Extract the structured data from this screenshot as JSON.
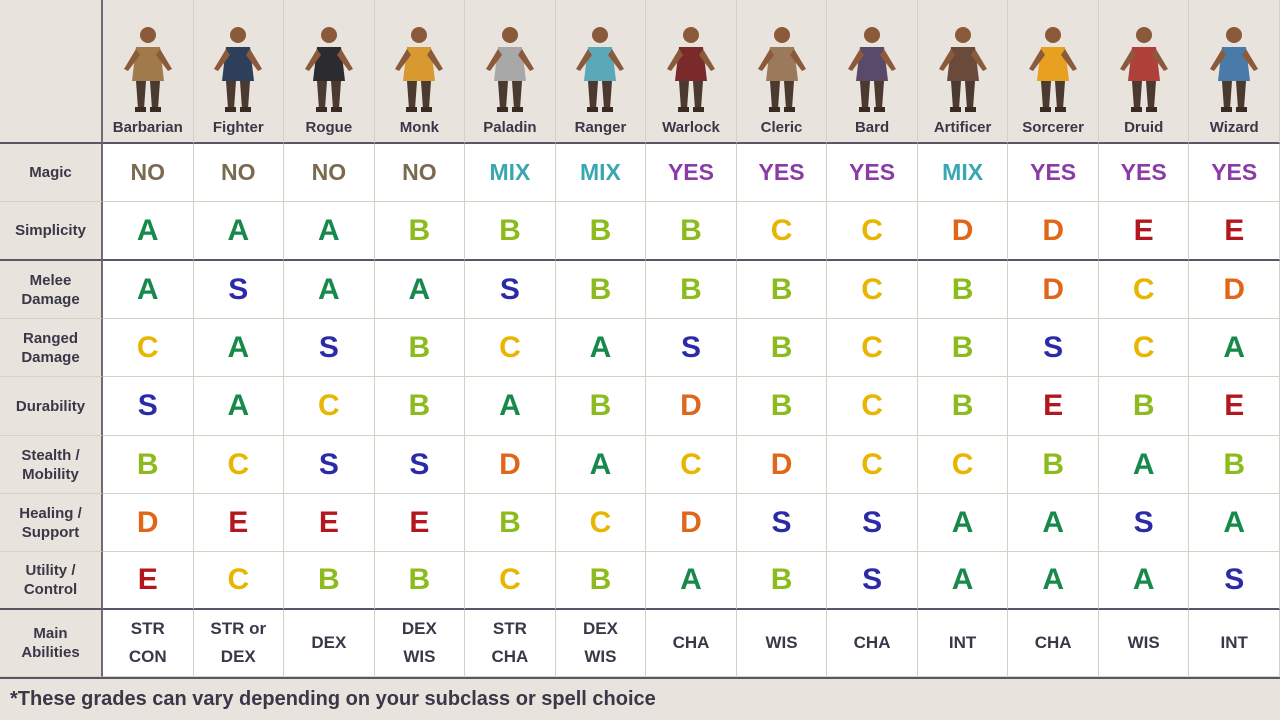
{
  "classes": [
    "Barbarian",
    "Fighter",
    "Rogue",
    "Monk",
    "Paladin",
    "Ranger",
    "Warlock",
    "Cleric",
    "Bard",
    "Artificer",
    "Sorcerer",
    "Druid",
    "Wizard"
  ],
  "rows": [
    {
      "label": "Magic",
      "type": "magic",
      "values": [
        "NO",
        "NO",
        "NO",
        "NO",
        "MIX",
        "MIX",
        "YES",
        "YES",
        "YES",
        "MIX",
        "YES",
        "YES",
        "YES"
      ]
    },
    {
      "label": "Simplicity",
      "type": "grade",
      "values": [
        "A",
        "A",
        "A",
        "B",
        "B",
        "B",
        "B",
        "C",
        "C",
        "D",
        "D",
        "E",
        "E"
      ]
    },
    {
      "label": "Melee\nDamage",
      "type": "grade",
      "values": [
        "A",
        "S",
        "A",
        "A",
        "S",
        "B",
        "B",
        "B",
        "C",
        "B",
        "D",
        "C",
        "D"
      ]
    },
    {
      "label": "Ranged\nDamage",
      "type": "grade",
      "values": [
        "C",
        "A",
        "S",
        "B",
        "C",
        "A",
        "S",
        "B",
        "C",
        "B",
        "S",
        "C",
        "A"
      ]
    },
    {
      "label": "Durability",
      "type": "grade",
      "values": [
        "S",
        "A",
        "C",
        "B",
        "A",
        "B",
        "D",
        "B",
        "C",
        "B",
        "E",
        "B",
        "E"
      ]
    },
    {
      "label": "Stealth /\nMobility",
      "type": "grade",
      "values": [
        "B",
        "C",
        "S",
        "S",
        "D",
        "A",
        "C",
        "D",
        "C",
        "C",
        "B",
        "A",
        "B"
      ]
    },
    {
      "label": "Healing /\nSupport",
      "type": "grade",
      "values": [
        "D",
        "E",
        "E",
        "E",
        "B",
        "C",
        "D",
        "S",
        "S",
        "A",
        "A",
        "S",
        "A"
      ]
    },
    {
      "label": "Utility /\nControl",
      "type": "grade",
      "values": [
        "E",
        "C",
        "B",
        "B",
        "C",
        "B",
        "A",
        "B",
        "S",
        "A",
        "A",
        "A",
        "S"
      ]
    },
    {
      "label": "Main\nAbilities",
      "type": "ability",
      "values": [
        "STR\nCON",
        "STR or\nDEX",
        "DEX",
        "DEX\nWIS",
        "STR\nCHA",
        "DEX\nWIS",
        "CHA",
        "WIS",
        "CHA",
        "INT",
        "CHA",
        "WIS",
        "INT"
      ]
    }
  ],
  "colors": {
    "grades": {
      "S": "#2b2ba8",
      "A": "#17894a",
      "B": "#8cbb1e",
      "C": "#e8b500",
      "D": "#e0661a",
      "E": "#b3171d"
    },
    "magic": {
      "NO": "#7a6a52",
      "MIX": "#3aa7b1",
      "YES": "#8b3aa6"
    },
    "figures": [
      "#a07a4a",
      "#2e3f5a",
      "#2b2b30",
      "#d89a30",
      "#a8a8a8",
      "#5aa8b8",
      "#7a2a2a",
      "#9a7a5a",
      "#5a4a6a",
      "#6a4a3a",
      "#e8a020",
      "#b0403a",
      "#4a7aa8"
    ]
  },
  "footer": "*These grades can vary depending on your subclass or spell choice"
}
